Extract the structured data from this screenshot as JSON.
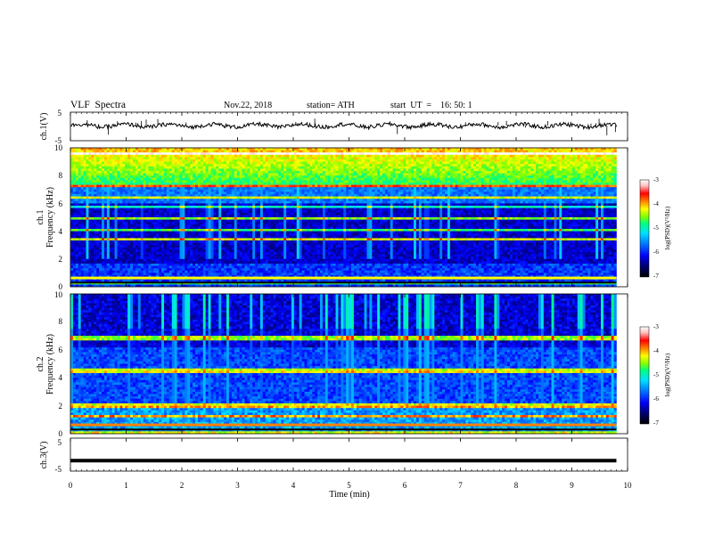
{
  "header": {
    "title": "VLF  Spectra",
    "date": "Nov.22, 2018",
    "station": "station= ATH",
    "start": "start  UT  =    16: 50: 1"
  },
  "colors": {
    "background": "#ffffff",
    "axis": "#000000",
    "colormap": [
      "#000000",
      "#00007a",
      "#0000ff",
      "#0080ff",
      "#00e0ff",
      "#00ff80",
      "#80ff00",
      "#ffff00",
      "#ff8000",
      "#ff0000",
      "#ffc0c0",
      "#ffffff"
    ]
  },
  "chart_data": [
    {
      "type": "line",
      "panel": "ch1-waveform",
      "ylabel": "ch.1(V)",
      "ylim": [
        -5,
        5
      ],
      "yticks": [
        "5",
        "-5"
      ],
      "xlim": [
        0,
        10
      ],
      "series_color": "#000000",
      "baseline_value": 0.3
    },
    {
      "type": "heatmap",
      "panel": "ch1-spectrogram",
      "ylabel_channel": "ch.1",
      "ylabel": "Frequency (kHz)",
      "ylim": [
        0,
        10
      ],
      "yticks": [
        "0",
        "2",
        "4",
        "6",
        "8",
        "10"
      ],
      "xlim": [
        0,
        10
      ],
      "data_extent_min": 9.8,
      "colorbar": {
        "label": "log(PSD)(V²/Hz)",
        "range": [
          -7,
          -3
        ],
        "ticks": [
          "-3",
          "-4",
          "-5",
          "-6",
          "-7"
        ]
      }
    },
    {
      "type": "heatmap",
      "panel": "ch2-spectrogram",
      "ylabel_channel": "ch.2",
      "ylabel": "Frequency (kHz)",
      "ylim": [
        0,
        10
      ],
      "yticks": [
        "0",
        "2",
        "4",
        "6",
        "8",
        "10"
      ],
      "xlim": [
        0,
        10
      ],
      "data_extent_min": 9.8,
      "colorbar": {
        "label": "log(PSD)(V²/Hz)",
        "range": [
          -7,
          -3
        ],
        "ticks": [
          "-3",
          "-4",
          "-5",
          "-6",
          "-7"
        ]
      }
    },
    {
      "type": "line",
      "panel": "ch3-waveform",
      "ylabel": "ch.3(V)",
      "ylim": [
        -5,
        5
      ],
      "yticks": [
        "5",
        "-5"
      ],
      "xlim": [
        0,
        10
      ],
      "series_color": "#000000",
      "baseline_value": -1.8
    }
  ],
  "xaxis": {
    "label": "Time  (min)",
    "ticks": [
      "0",
      "1",
      "2",
      "3",
      "4",
      "5",
      "6",
      "7",
      "8",
      "9",
      "10"
    ]
  }
}
